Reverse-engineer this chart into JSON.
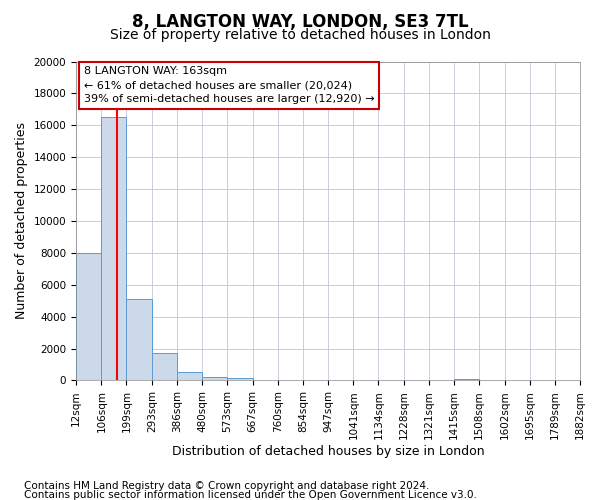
{
  "title1": "8, LANGTON WAY, LONDON, SE3 7TL",
  "title2": "Size of property relative to detached houses in London",
  "xlabel": "Distribution of detached houses by size in London",
  "ylabel": "Number of detached properties",
  "bar_edges": [
    12,
    106,
    199,
    293,
    386,
    480,
    573,
    667,
    760,
    854,
    947,
    1041,
    1134,
    1228,
    1321,
    1415,
    1508,
    1602,
    1695,
    1789,
    1882
  ],
  "bar_heights": [
    8000,
    16500,
    5100,
    1750,
    550,
    200,
    150,
    0,
    0,
    0,
    0,
    0,
    0,
    0,
    0,
    80,
    0,
    0,
    0,
    0
  ],
  "bar_color": "#ccd9ea",
  "bar_edge_color": "#5b9bd5",
  "vline_x": 163,
  "vline_color": "#ff0000",
  "annotation_title": "8 LANGTON WAY: 163sqm",
  "annotation_line1": "← 61% of detached houses are smaller (20,024)",
  "annotation_line2": "39% of semi-detached houses are larger (12,920) →",
  "annotation_box_color": "#ffffff",
  "annotation_box_edge": "#cc0000",
  "ylim": [
    0,
    20000
  ],
  "yticks": [
    0,
    2000,
    4000,
    6000,
    8000,
    10000,
    12000,
    14000,
    16000,
    18000,
    20000
  ],
  "xtick_labels": [
    "12sqm",
    "106sqm",
    "199sqm",
    "293sqm",
    "386sqm",
    "480sqm",
    "573sqm",
    "667sqm",
    "760sqm",
    "854sqm",
    "947sqm",
    "1041sqm",
    "1134sqm",
    "1228sqm",
    "1321sqm",
    "1415sqm",
    "1508sqm",
    "1602sqm",
    "1695sqm",
    "1789sqm",
    "1882sqm"
  ],
  "footnote1": "Contains HM Land Registry data © Crown copyright and database right 2024.",
  "footnote2": "Contains public sector information licensed under the Open Government Licence v3.0.",
  "bg_color": "#ffffff",
  "grid_color": "#c0c8d8",
  "title1_fontsize": 12,
  "title2_fontsize": 10,
  "axis_fontsize": 9,
  "tick_fontsize": 7.5,
  "annotation_fontsize": 8,
  "footnote_fontsize": 7.5
}
